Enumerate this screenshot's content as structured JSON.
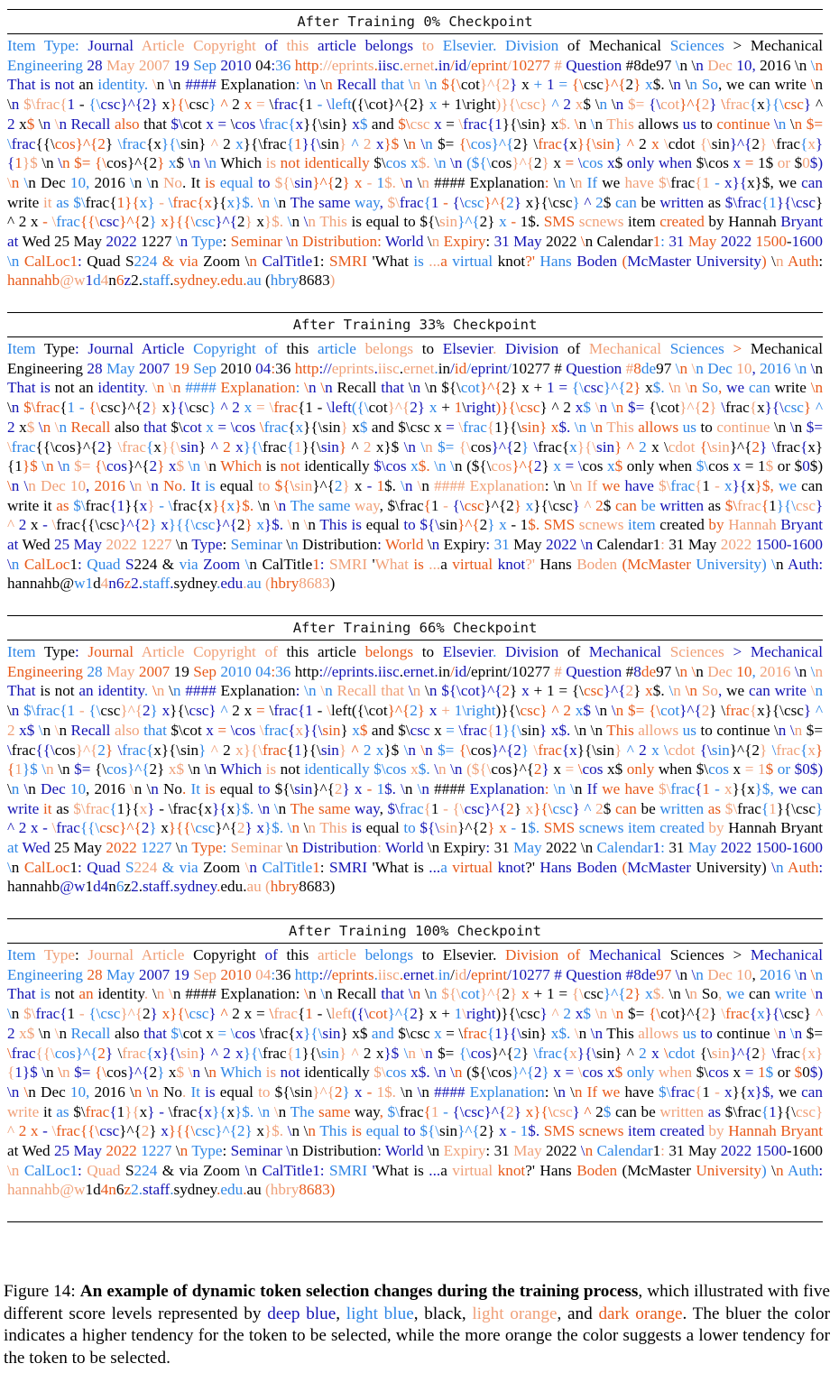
{
  "palette": {
    "deep_blue": "#1414b4",
    "light_blue": "#2e86e6",
    "black": "#000000",
    "light_orange": "#f0a078",
    "dark_orange": "#e85a1a"
  },
  "passage": "Item Type: Journal Article Copyright of this article belongs to Elsevier. Division of Mechanical Sciences > Mechanical Engineering 28 May 2007 19 Sep 2010 04:36 http://eprints.iisc.ernet.in/id/eprint/10277 # Question #8de97 \\n \\n Dec 10, 2016 \\n \\n That is not an identity. \\n \\n #### Explanation: \\n \\n Recall that \\n \\n ${\\cot}^{2} x + 1 = {\\csc}^{2} x$. \\n \\n So, we can write \\n \\n $\\frac{1 - {\\csc}^{2} x}{\\csc} ^ 2 x = \\frac{1 - \\left({\\cot}^{2} x + 1\\right)}{\\csc} ^ 2 x$ \\n \\n $= {\\cot}^{2} \\frac{x}{\\csc} ^ 2 x$ \\n \\n Recall also that $\\cot x = \\cos \\frac{x}{\\sin} x$ and $\\csc x = \\frac{1}{\\sin} x$. \\n \\n This allows us to continue \\n \\n $= \\frac{{\\cos}^{2} \\frac{x}{\\sin} ^ 2 x}{\\frac{1}{\\sin} ^ 2 x}$ \\n \\n $= {\\cos}^{2} \\frac{x}{\\sin} ^ 2 x \\cdot {\\sin}^{2} \\frac{x}{1}$ \\n \\n $= {\\cos}^{2} x$ \\n \\n Which is not identically $\\cos x$. \\n \\n (${\\cos}^{2} x = \\cos x$ only when $\\cos x = 1$ or $0$) \\n \\n Dec 10, 2016 \\n \\n No. It is equal to ${\\sin}^{2} x - 1$. \\n \\n #### Explanation: \\n \\n If we have $\\frac{1 - x}{x}$, we can write it as $\\frac{1}{x} - \\frac{x}{x}$. \\n \\n The same way, $\\frac{1 - {\\csc}^{2} x}{\\csc} ^ 2$ can be written as $\\frac{1}{\\csc} ^ 2 x - \\frac{{\\csc}^{2} x}{{\\csc}^{2} x}$. \\n \\n This is equal to ${\\sin}^{2} x - 1$. SMS scnews item created by Hannah Bryant at Wed 25 May 2022 1227 \\n Type: Seminar \\n Distribution: World \\n Expiry: 31 May 2022 \\n Calendar1: 31 May 2022 1500-1600 \\n CalLoc1: Quad S224 & via Zoom \\n CalTitle1: SMRI 'What is ...a virtual knot?' Hans Boden (McMaster University) \\n Auth: hannahb@w1d4n6z2.staff.sydney.edu.au (hbry8683)",
  "panels": [
    {
      "title": "After Training 0% Checkpoint",
      "seed": 11
    },
    {
      "title": "After Training 33% Checkpoint",
      "seed": 37
    },
    {
      "title": "After Training 66% Checkpoint",
      "seed": 59
    },
    {
      "title": "After Training 100% Checkpoint",
      "seed": 83
    }
  ],
  "caption": {
    "label": "Figure 14:",
    "bold": "An example of dynamic token selection changes during the training process",
    "part1": ", which illustrated with five different score levels represented by",
    "deep_blue": "deep blue",
    "light_blue": "light blue",
    "black": "black",
    "light_orange": "light orange",
    "dark_orange": "dark orange",
    "part2": ". The bluer the color indicates a higher tendency for the token to be selected, while the more orange the color suggests a lower tendency for the token to be selected."
  }
}
